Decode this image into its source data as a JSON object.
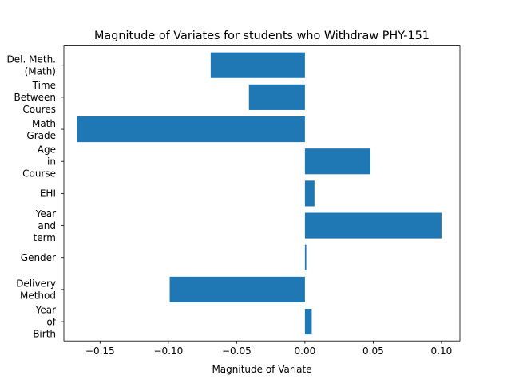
{
  "chart_data": {
    "type": "bar",
    "orientation": "horizontal",
    "title": "Magnitude of Variates for students who Withdraw PHY-151",
    "xlabel": "Magnitude of Variate",
    "ylabel": "",
    "xlim": [
      -0.1765,
      0.1135
    ],
    "xticks": [
      "−0.15",
      "−0.10",
      "−0.05",
      "0.00",
      "0.05",
      "0.10"
    ],
    "xtick_values": [
      -0.15,
      -0.1,
      -0.05,
      0.0,
      0.05,
      0.1
    ],
    "bar_color": "#1f77b4",
    "grid": false,
    "categories": [
      {
        "label": "Del. Meth.\n(Math)",
        "value": -0.069
      },
      {
        "label": "Time\nBetween\nCoures",
        "value": -0.041
      },
      {
        "label": "Math\nGrade",
        "value": -0.167
      },
      {
        "label": "Age\nin\nCourse",
        "value": 0.048
      },
      {
        "label": "EHI",
        "value": 0.007
      },
      {
        "label": "Year\nand\nterm",
        "value": 0.1
      },
      {
        "label": "Gender",
        "value": 0.001
      },
      {
        "label": "Delivery\nMethod",
        "value": -0.099
      },
      {
        "label": "Year\nof\nBirth",
        "value": 0.005
      }
    ]
  }
}
